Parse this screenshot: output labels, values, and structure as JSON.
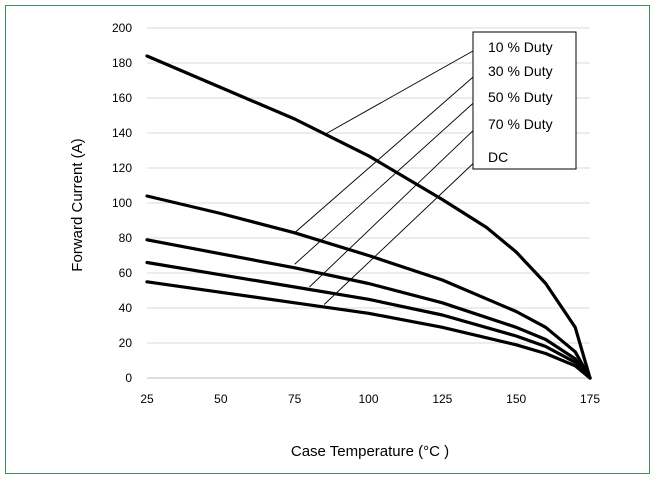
{
  "chart_data": {
    "type": "line",
    "xlabel": "Case Temperature (°C )",
    "ylabel": "Forward Current (A)",
    "xlim": [
      25,
      175
    ],
    "ylim": [
      0,
      200
    ],
    "xticks": [
      25,
      50,
      75,
      100,
      125,
      150,
      175
    ],
    "yticks": [
      0,
      20,
      40,
      60,
      80,
      100,
      120,
      140,
      160,
      180,
      200
    ],
    "grid": "horizontal",
    "legend_placement": "top-right",
    "series": [
      {
        "name": "10 % Duty",
        "x": [
          25,
          50,
          75,
          100,
          125,
          140,
          150,
          160,
          170,
          175
        ],
        "y": [
          184,
          166,
          148,
          127,
          102,
          86,
          72,
          54,
          29,
          0
        ]
      },
      {
        "name": "30 % Duty",
        "x": [
          25,
          50,
          75,
          100,
          125,
          150,
          160,
          170,
          175
        ],
        "y": [
          104,
          94,
          83,
          70,
          56,
          38,
          29,
          15,
          0
        ]
      },
      {
        "name": "50 % Duty",
        "x": [
          25,
          50,
          75,
          100,
          125,
          150,
          160,
          170,
          175
        ],
        "y": [
          79,
          71,
          63,
          54,
          43,
          29,
          22,
          11,
          0
        ]
      },
      {
        "name": "70 % Duty",
        "x": [
          25,
          50,
          75,
          100,
          125,
          150,
          160,
          170,
          175
        ],
        "y": [
          66,
          59,
          52,
          45,
          36,
          24,
          18,
          9,
          0
        ]
      },
      {
        "name": "DC",
        "x": [
          25,
          50,
          75,
          100,
          125,
          150,
          160,
          170,
          175
        ],
        "y": [
          55,
          49,
          43,
          37,
          29,
          19,
          14,
          7,
          0
        ]
      }
    ],
    "callouts": [
      {
        "series": "10 % Duty",
        "at": [
          85,
          139
        ]
      },
      {
        "series": "30 % Duty",
        "at": [
          75,
          83
        ]
      },
      {
        "series": "50 % Duty",
        "at": [
          75,
          65
        ]
      },
      {
        "series": "70 % Duty",
        "at": [
          80,
          52
        ]
      },
      {
        "series": "DC",
        "at": [
          85,
          42
        ]
      }
    ]
  }
}
